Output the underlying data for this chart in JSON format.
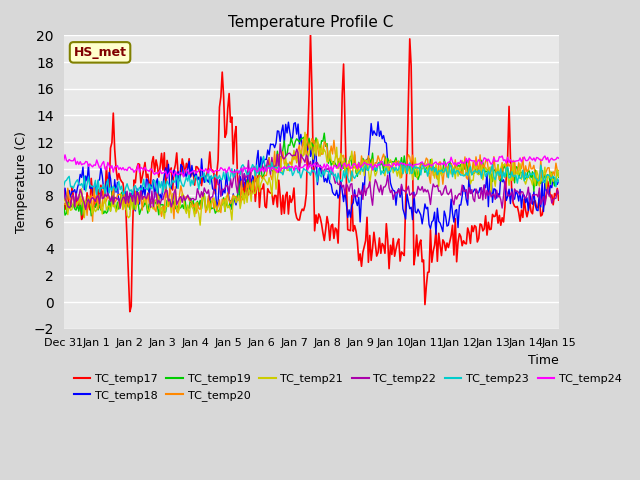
{
  "title": "Temperature Profile C",
  "xlabel": "Time",
  "ylabel": "Temperature (C)",
  "ylim": [
    -2,
    20
  ],
  "annotation": "HS_met",
  "legend_entries": [
    "TC_temp17",
    "TC_temp18",
    "TC_temp19",
    "TC_temp20",
    "TC_temp21",
    "TC_temp22",
    "TC_temp23",
    "TC_temp24"
  ],
  "line_colors": [
    "#ff0000",
    "#0000ff",
    "#00cc00",
    "#ff8800",
    "#cccc00",
    "#aa00aa",
    "#00cccc",
    "#ff00ff"
  ],
  "background_color": "#e8e8e8",
  "plot_bg_color": "#f0f0f0",
  "xtick_labels": [
    "Dec 31",
    "Jan 1",
    "Jan 2",
    "Jan 3",
    "Jan 4",
    "Jan 5",
    "Jan 6",
    "Jan 7",
    "Jan 8",
    "Jan 9",
    "Jan 10",
    "Jan 11",
    "Jan 12",
    "Jan 13",
    "Jan 14",
    "Jan 15"
  ],
  "xtick_positions": [
    0,
    1,
    2,
    3,
    4,
    5,
    6,
    7,
    8,
    9,
    10,
    11,
    12,
    13,
    14,
    15
  ],
  "ytick_positions": [
    -2,
    0,
    2,
    4,
    6,
    8,
    10,
    12,
    14,
    16,
    18,
    20
  ],
  "num_points": 360,
  "time_start": 0,
  "time_end": 15
}
